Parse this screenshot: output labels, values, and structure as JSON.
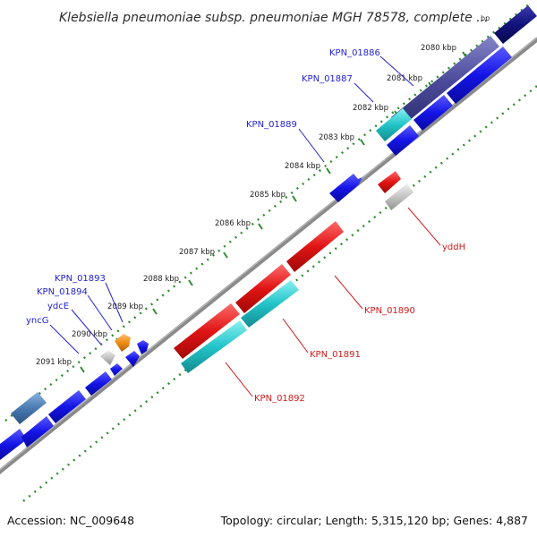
{
  "header": {
    "title": "Klebsiella pneumoniae subsp. pneumoniae MGH 78578, complete ...",
    "title_tail": "bp"
  },
  "footer": {
    "accession": "Accession: NC_009648",
    "summary": "Topology: circular; Length: 5,315,120 bp; Genes: 4,887"
  },
  "scale_ticks": [
    {
      "label": "2080 kbp"
    },
    {
      "label": "2081 kbp"
    },
    {
      "label": "2082 kbp"
    },
    {
      "label": "2083 kbp"
    },
    {
      "label": "2084 kbp"
    },
    {
      "label": "2085 kbp"
    },
    {
      "label": "2086 kbp"
    },
    {
      "label": "2087 kbp"
    },
    {
      "label": "2088 kbp"
    },
    {
      "label": "2089 kbp"
    },
    {
      "label": "2090 kbp"
    },
    {
      "label": "2091 kbp"
    }
  ],
  "gene_labels": {
    "forward": [
      {
        "name": "KPN_01886"
      },
      {
        "name": "KPN_01887"
      },
      {
        "name": "KPN_01889"
      },
      {
        "name": "KPN_01893"
      },
      {
        "name": "KPN_01894"
      },
      {
        "name": "ydcE"
      },
      {
        "name": "yncG"
      }
    ],
    "reverse": [
      {
        "name": "yddH"
      },
      {
        "name": "KPN_01890"
      },
      {
        "name": "KPN_01891"
      },
      {
        "name": "KPN_01892"
      }
    ]
  },
  "colors": {
    "backbone": "#8a8a8a",
    "tick_marks": "#2e8b2e",
    "forward_label": "#1f1fd0",
    "reverse_label": "#d21a1a",
    "cds_blue": "#1414e6",
    "cds_navy": "#12127a",
    "cds_purple": "#4a4a9a",
    "cds_steel": "#4a7ab0",
    "cds_cyan": "#22c4c8",
    "cds_red": "#e01414",
    "cds_gray": "#c4c4c4",
    "cds_orange": "#f08c14"
  }
}
